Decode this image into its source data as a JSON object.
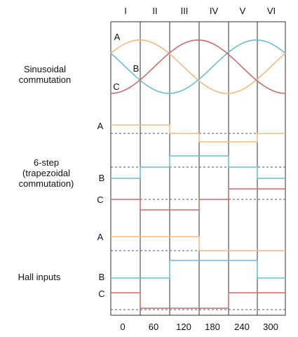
{
  "sections": {
    "sinusoidal": [
      "Sinusoidal",
      "commutation"
    ],
    "sixstep": [
      "6-step",
      "(trapezoidal",
      "commutation)"
    ],
    "hall": [
      "Hall inputs"
    ]
  },
  "sectors": [
    "I",
    "II",
    "III",
    "IV",
    "V",
    "VI"
  ],
  "degrees": [
    "0",
    "60",
    "120",
    "180",
    "240",
    "300"
  ],
  "phases": {
    "a": "A",
    "b": "B",
    "c": "C"
  },
  "colors": {
    "a": "#f5b982",
    "b": "#6dbfcb",
    "c": "#c96e6e",
    "grid": "#333333",
    "dash": "#555555"
  },
  "sixstep_levels": {
    "A": [
      1,
      1,
      0,
      -1,
      -1,
      0
    ],
    "B": [
      -1,
      0,
      1,
      1,
      0,
      -1
    ],
    "C": [
      0,
      -1,
      -1,
      0,
      1,
      1
    ]
  },
  "hall_states": {
    "A": [
      1,
      1,
      1,
      0,
      0,
      0
    ],
    "B": [
      0,
      0,
      1,
      1,
      1,
      0
    ],
    "C": [
      1,
      0,
      0,
      0,
      1,
      1
    ]
  }
}
